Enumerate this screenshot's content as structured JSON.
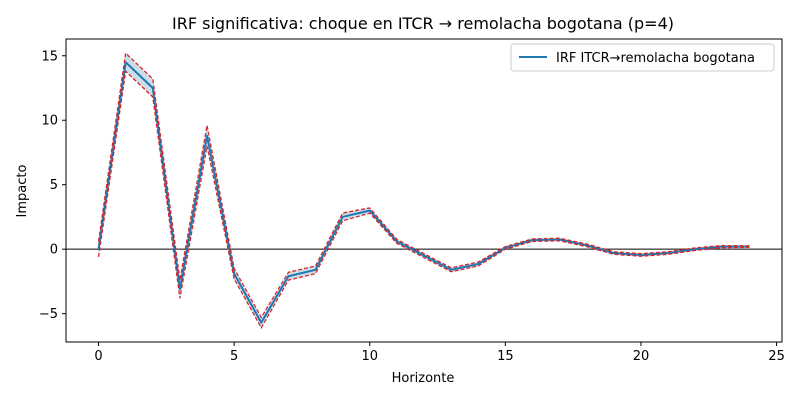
{
  "chart_data": {
    "type": "line",
    "title": "IRF significativa: choque en ITCR → remolacha bogotana (p=4)",
    "xlabel": "Horizonte",
    "ylabel": "Impacto",
    "xlim": [
      -1.2,
      25.2
    ],
    "ylim": [
      -7.2,
      16.3
    ],
    "xticks": [
      0,
      5,
      10,
      15,
      20,
      25
    ],
    "yticks": [
      -5,
      0,
      5,
      10,
      15
    ],
    "legend_position": "top-right",
    "reference_line": 0,
    "colors": {
      "irf": "#1f77b4",
      "band_fill": "#a6c3d6",
      "band_edge": "#d62728",
      "zero_line": "#000000"
    },
    "x": [
      0,
      1,
      2,
      3,
      4,
      5,
      6,
      7,
      8,
      9,
      10,
      11,
      12,
      13,
      14,
      15,
      16,
      17,
      18,
      19,
      20,
      21,
      22,
      23,
      24
    ],
    "series": [
      {
        "name": "IRF ITCR→remolacha bogotana",
        "values": [
          0,
          14.5,
          12.5,
          -3.1,
          8.8,
          -1.9,
          -5.7,
          -2.1,
          -1.6,
          2.5,
          3.0,
          0.6,
          -0.5,
          -1.6,
          -1.15,
          0.1,
          0.7,
          0.75,
          0.3,
          -0.3,
          -0.45,
          -0.3,
          0.0,
          0.2,
          0.2
        ]
      }
    ],
    "band_upper": [
      0.6,
      15.2,
      13.2,
      -2.4,
      9.6,
      -1.5,
      -5.3,
      -1.8,
      -1.3,
      2.8,
      3.2,
      0.75,
      -0.35,
      -1.45,
      -1.0,
      0.2,
      0.8,
      0.85,
      0.4,
      -0.2,
      -0.35,
      -0.2,
      0.1,
      0.28,
      0.26
    ],
    "band_lower": [
      -0.6,
      13.8,
      11.8,
      -3.8,
      8.0,
      -2.3,
      -6.1,
      -2.4,
      -1.9,
      2.2,
      2.8,
      0.45,
      -0.65,
      -1.75,
      -1.3,
      0.0,
      0.6,
      0.65,
      0.2,
      -0.4,
      -0.55,
      -0.4,
      -0.1,
      0.12,
      0.14
    ]
  }
}
